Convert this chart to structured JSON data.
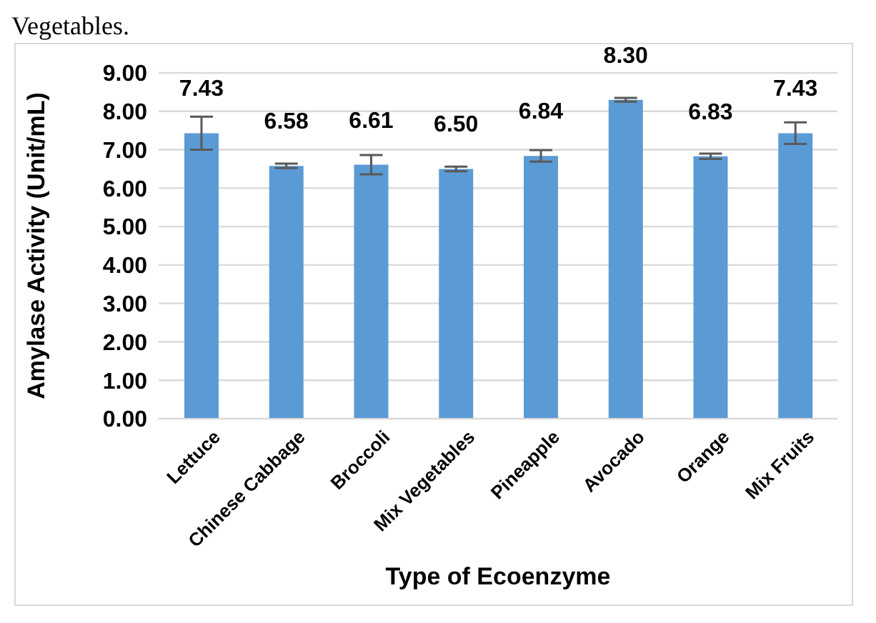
{
  "chart_data": {
    "type": "bar",
    "xlabel": "Type of Ecoenzyme",
    "ylabel": "Amylase Activity (Unit/mL)",
    "annotations": [
      "Vegetables."
    ],
    "categories": [
      "Lettuce",
      "Chinese Cabbage",
      "Broccoli",
      "Mix Vegetables",
      "Pineapple",
      "Avocado",
      "Orange",
      "Mix Fruits"
    ],
    "values": [
      7.43,
      6.58,
      6.61,
      6.5,
      6.84,
      8.3,
      6.83,
      7.43
    ],
    "errors": [
      0.43,
      0.06,
      0.25,
      0.06,
      0.15,
      0.05,
      0.07,
      0.28
    ],
    "value_labels": [
      "7.43",
      "6.58",
      "6.61",
      "6.50",
      "6.84",
      "8.30",
      "6.83",
      "7.43"
    ],
    "color": "#5b9bd5",
    "grid": "y",
    "ylim": [
      0,
      9
    ],
    "yticks": [
      {
        "value": 0,
        "label": "0.00"
      },
      {
        "value": 1,
        "label": "1.00"
      },
      {
        "value": 2,
        "label": "2.00"
      },
      {
        "value": 3,
        "label": "3.00"
      },
      {
        "value": 4,
        "label": "4.00"
      },
      {
        "value": 5,
        "label": "5.00"
      },
      {
        "value": 6,
        "label": "6.00"
      },
      {
        "value": 7,
        "label": "7.00"
      },
      {
        "value": 8,
        "label": "8.00"
      },
      {
        "value": 9,
        "label": "9.00"
      }
    ]
  }
}
